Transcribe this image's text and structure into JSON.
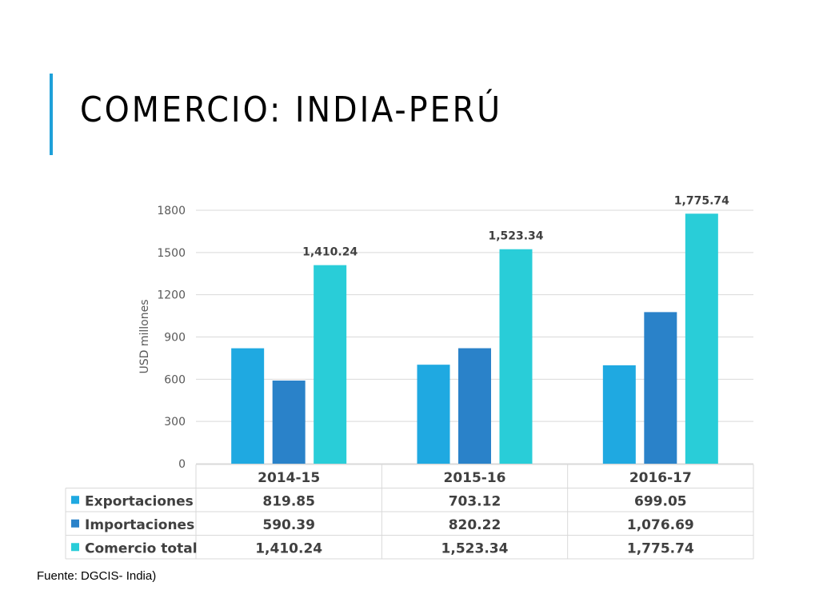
{
  "slide": {
    "title": "COMERCIO: INDIA-PERÚ",
    "source": "Fuente: DGCIS- India)",
    "accent_color": "#1ea1d9"
  },
  "chart_data": {
    "type": "bar",
    "title": "",
    "ylabel": "USD millones",
    "xlabel": "",
    "ylim": [
      0,
      1800
    ],
    "yticks": [
      "0",
      "300",
      "600",
      "900",
      "1200",
      "1500",
      "1800"
    ],
    "grid": true,
    "legend": "data-table",
    "categories": [
      "2014-15",
      "2015-16",
      "2016-17"
    ],
    "series": [
      {
        "name": "Exportaciones",
        "color": "#1fa9e1",
        "values": [
          819.85,
          703.12,
          699.05
        ],
        "labels": [
          "819.85",
          "703.12",
          "699.05"
        ],
        "show_bar_labels": false
      },
      {
        "name": "Importaciones",
        "color": "#2a82c9",
        "values": [
          590.39,
          820.22,
          1076.69
        ],
        "labels": [
          "590.39",
          "820.22",
          "1,076.69"
        ],
        "show_bar_labels": false
      },
      {
        "name": "Comercio total",
        "color": "#29cdd8",
        "values": [
          1410.24,
          1523.34,
          1775.74
        ],
        "labels": [
          "1,410.24",
          "1,523.34",
          "1,775.74"
        ],
        "show_bar_labels": true
      }
    ]
  }
}
